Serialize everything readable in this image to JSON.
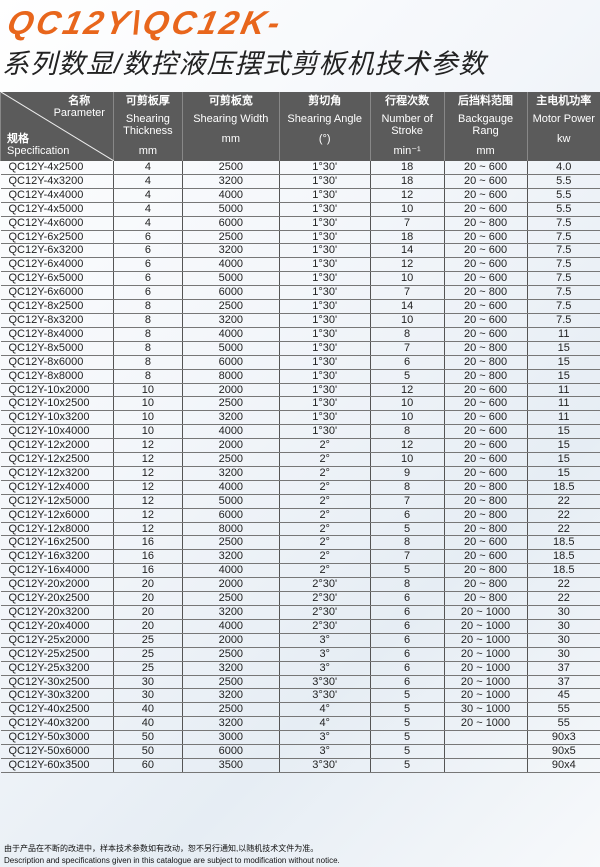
{
  "title": "QC12Y\\QC12K-",
  "subtitle": "系列数显/数控液压摆式剪板机技术参数",
  "header": {
    "corner": {
      "param_cn": "名称",
      "param_en": "Parameter",
      "spec_cn": "规格",
      "spec_en": "Specification"
    },
    "columns": [
      {
        "cn": "可剪板厚",
        "en": "Shearing Thickness",
        "unit": "mm"
      },
      {
        "cn": "可剪板宽",
        "en": "Shearing Width",
        "unit": "mm"
      },
      {
        "cn": "剪切角",
        "en": "Shearing Angle",
        "unit": "(°)"
      },
      {
        "cn": "行程次数",
        "en": "Number of Stroke",
        "unit": "min⁻¹"
      },
      {
        "cn": "后挡料范围",
        "en": "Backgauge Rang",
        "unit": "mm"
      },
      {
        "cn": "主电机功率",
        "en": "Motor Power",
        "unit": "kw"
      }
    ]
  },
  "rows": [
    [
      "QC12Y-4x2500",
      "4",
      "2500",
      "1°30'",
      "18",
      "20 ~ 600",
      "4.0"
    ],
    [
      "QC12Y-4x3200",
      "4",
      "3200",
      "1°30'",
      "18",
      "20 ~ 600",
      "5.5"
    ],
    [
      "QC12Y-4x4000",
      "4",
      "4000",
      "1°30'",
      "12",
      "20 ~ 600",
      "5.5"
    ],
    [
      "QC12Y-4x5000",
      "4",
      "5000",
      "1°30'",
      "10",
      "20 ~ 600",
      "5.5"
    ],
    [
      "QC12Y-4x6000",
      "4",
      "6000",
      "1°30'",
      "7",
      "20 ~ 800",
      "7.5"
    ],
    [
      "QC12Y-6x2500",
      "6",
      "2500",
      "1°30'",
      "18",
      "20 ~ 600",
      "7.5"
    ],
    [
      "QC12Y-6x3200",
      "6",
      "3200",
      "1°30'",
      "14",
      "20 ~ 600",
      "7.5"
    ],
    [
      "QC12Y-6x4000",
      "6",
      "4000",
      "1°30'",
      "12",
      "20 ~ 600",
      "7.5"
    ],
    [
      "QC12Y-6x5000",
      "6",
      "5000",
      "1°30'",
      "10",
      "20 ~ 600",
      "7.5"
    ],
    [
      "QC12Y-6x6000",
      "6",
      "6000",
      "1°30'",
      "7",
      "20 ~ 800",
      "7.5"
    ],
    [
      "QC12Y-8x2500",
      "8",
      "2500",
      "1°30'",
      "14",
      "20 ~ 600",
      "7.5"
    ],
    [
      "QC12Y-8x3200",
      "8",
      "3200",
      "1°30'",
      "10",
      "20 ~ 600",
      "7.5"
    ],
    [
      "QC12Y-8x4000",
      "8",
      "4000",
      "1°30'",
      "8",
      "20 ~ 600",
      "11"
    ],
    [
      "QC12Y-8x5000",
      "8",
      "5000",
      "1°30'",
      "7",
      "20 ~ 800",
      "15"
    ],
    [
      "QC12Y-8x6000",
      "8",
      "6000",
      "1°30'",
      "6",
      "20 ~ 800",
      "15"
    ],
    [
      "QC12Y-8x8000",
      "8",
      "8000",
      "1°30'",
      "5",
      "20 ~ 800",
      "15"
    ],
    [
      "QC12Y-10x2000",
      "10",
      "2000",
      "1°30'",
      "12",
      "20 ~ 600",
      "11"
    ],
    [
      "QC12Y-10x2500",
      "10",
      "2500",
      "1°30'",
      "10",
      "20 ~ 600",
      "11"
    ],
    [
      "QC12Y-10x3200",
      "10",
      "3200",
      "1°30'",
      "10",
      "20 ~ 600",
      "11"
    ],
    [
      "QC12Y-10x4000",
      "10",
      "4000",
      "1°30'",
      "8",
      "20 ~ 600",
      "15"
    ],
    [
      "QC12Y-12x2000",
      "12",
      "2000",
      "2°",
      "12",
      "20 ~ 600",
      "15"
    ],
    [
      "QC12Y-12x2500",
      "12",
      "2500",
      "2°",
      "10",
      "20 ~ 600",
      "15"
    ],
    [
      "QC12Y-12x3200",
      "12",
      "3200",
      "2°",
      "9",
      "20 ~ 600",
      "15"
    ],
    [
      "QC12Y-12x4000",
      "12",
      "4000",
      "2°",
      "8",
      "20 ~ 800",
      "18.5"
    ],
    [
      "QC12Y-12x5000",
      "12",
      "5000",
      "2°",
      "7",
      "20 ~ 800",
      "22"
    ],
    [
      "QC12Y-12x6000",
      "12",
      "6000",
      "2°",
      "6",
      "20 ~ 800",
      "22"
    ],
    [
      "QC12Y-12x8000",
      "12",
      "8000",
      "2°",
      "5",
      "20 ~ 800",
      "22"
    ],
    [
      "QC12Y-16x2500",
      "16",
      "2500",
      "2°",
      "8",
      "20 ~ 600",
      "18.5"
    ],
    [
      "QC12Y-16x3200",
      "16",
      "3200",
      "2°",
      "7",
      "20 ~ 600",
      "18.5"
    ],
    [
      "QC12Y-16x4000",
      "16",
      "4000",
      "2°",
      "5",
      "20 ~ 800",
      "18.5"
    ],
    [
      "QC12Y-20x2000",
      "20",
      "2000",
      "2°30'",
      "8",
      "20 ~ 800",
      "22"
    ],
    [
      "QC12Y-20x2500",
      "20",
      "2500",
      "2°30'",
      "6",
      "20 ~ 800",
      "22"
    ],
    [
      "QC12Y-20x3200",
      "20",
      "3200",
      "2°30'",
      "6",
      "20 ~ 1000",
      "30"
    ],
    [
      "QC12Y-20x4000",
      "20",
      "4000",
      "2°30'",
      "6",
      "20 ~ 1000",
      "30"
    ],
    [
      "QC12Y-25x2000",
      "25",
      "2000",
      "3°",
      "6",
      "20 ~ 1000",
      "30"
    ],
    [
      "QC12Y-25x2500",
      "25",
      "2500",
      "3°",
      "6",
      "20 ~ 1000",
      "30"
    ],
    [
      "QC12Y-25x3200",
      "25",
      "3200",
      "3°",
      "6",
      "20 ~ 1000",
      "37"
    ],
    [
      "QC12Y-30x2500",
      "30",
      "2500",
      "3°30'",
      "6",
      "20 ~ 1000",
      "37"
    ],
    [
      "QC12Y-30x3200",
      "30",
      "3200",
      "3°30'",
      "5",
      "20 ~ 1000",
      "45"
    ],
    [
      "QC12Y-40x2500",
      "40",
      "2500",
      "4°",
      "5",
      "30 ~ 1000",
      "55"
    ],
    [
      "QC12Y-40x3200",
      "40",
      "3200",
      "4°",
      "5",
      "20 ~ 1000",
      "55"
    ],
    [
      "QC12Y-50x3000",
      "50",
      "3000",
      "3°",
      "5",
      "",
      "90x3"
    ],
    [
      "QC12Y-50x6000",
      "50",
      "6000",
      "3°",
      "5",
      "",
      "90x5"
    ],
    [
      "QC12Y-60x3500",
      "60",
      "3500",
      "3°30'",
      "5",
      "",
      "90x4"
    ]
  ],
  "footer": {
    "note_cn": "由于产品在不断的改进中，样本技术参数如有改动，恕不另行通知,以随机技术文件为准。",
    "note_en": "Description and specifications given in this catalogue are subject to modification without notice."
  },
  "colors": {
    "title": "#e8661c",
    "header_bg": "#5b5b5b"
  }
}
